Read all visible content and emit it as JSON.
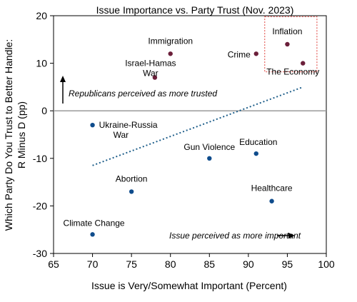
{
  "chart_data": {
    "type": "scatter",
    "title": "Issue Importance vs. Party Trust (Nov. 2023)",
    "xlabel": "Issue is Very/Somewhat Important (Percent)",
    "ylabel_line1": "Which Party Do You Trust to Better Handle:",
    "ylabel_line2": "R Minus D (pp)",
    "xlim": [
      65,
      100
    ],
    "ylim": [
      -30,
      20
    ],
    "xticks": [
      65,
      70,
      75,
      80,
      85,
      90,
      95,
      100
    ],
    "yticks": [
      -30,
      -20,
      -10,
      0,
      10,
      20
    ],
    "grid": false,
    "colors": {
      "republican": "#6b1f3a",
      "democrat": "#0f4c8c",
      "trend": "#1f5f8b",
      "highlight_box": "#e0413b",
      "zero_line": "#9a9a9a"
    },
    "points": [
      {
        "label": "Inflation",
        "x": 95,
        "y": 14,
        "group": "republican"
      },
      {
        "label": "The Economy",
        "x": 97,
        "y": 10,
        "group": "republican"
      },
      {
        "label": "Crime",
        "x": 91,
        "y": 12,
        "group": "republican"
      },
      {
        "label": "Immigration",
        "x": 80,
        "y": 12,
        "group": "republican"
      },
      {
        "label": "Israel-Hamas War",
        "x": 78,
        "y": 7,
        "group": "republican"
      },
      {
        "label": "Ukraine-Russia War",
        "x": 70,
        "y": -3,
        "group": "democrat"
      },
      {
        "label": "Gun Violence",
        "x": 85,
        "y": -10,
        "group": "democrat"
      },
      {
        "label": "Education",
        "x": 91,
        "y": -9,
        "group": "democrat"
      },
      {
        "label": "Abortion",
        "x": 75,
        "y": -17,
        "group": "democrat"
      },
      {
        "label": "Healthcare",
        "x": 93,
        "y": -19,
        "group": "democrat"
      },
      {
        "label": "Climate Change",
        "x": 70,
        "y": -26,
        "group": "democrat"
      }
    ],
    "trendline": {
      "from": [
        70,
        -11.5
      ],
      "to": [
        97,
        5
      ]
    },
    "highlight_box": {
      "x": [
        92.1,
        98.8
      ],
      "y": [
        8.2,
        19.8
      ]
    },
    "annotations": {
      "republican": "Republicans perceived as more trusted",
      "importance": "Issue perceived as more important"
    }
  }
}
